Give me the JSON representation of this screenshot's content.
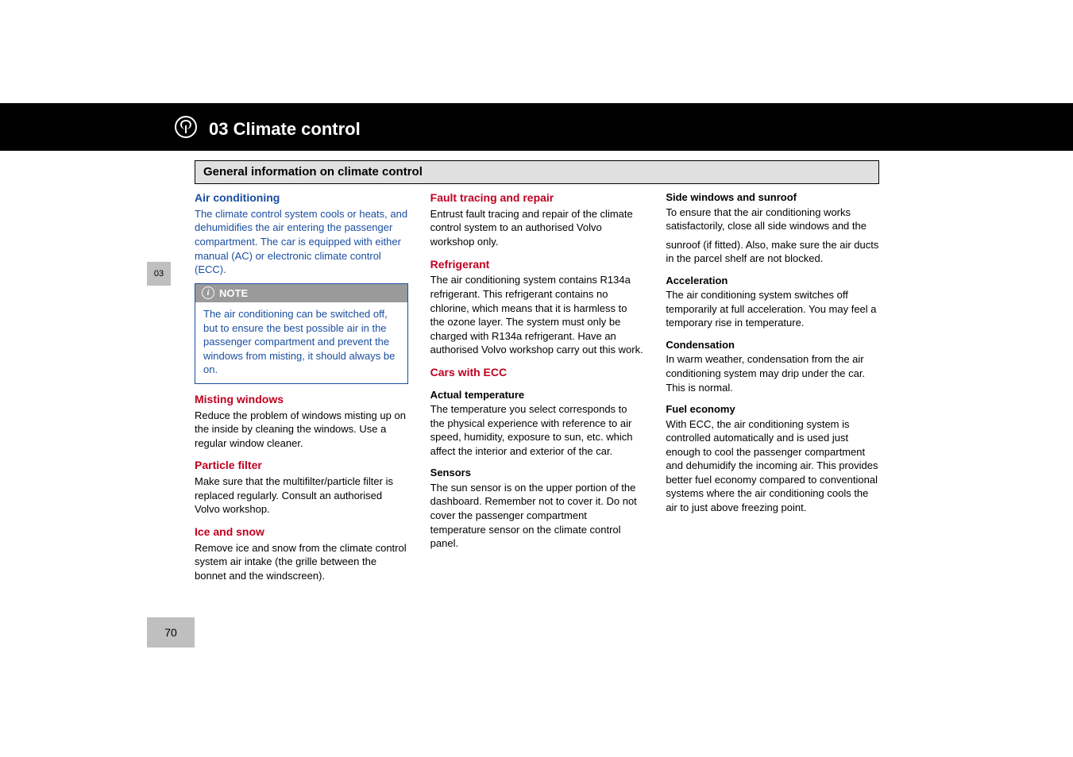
{
  "chapter": {
    "number_label": "03",
    "title": "03 Climate control"
  },
  "section_title": "General information on climate control",
  "page_number": "70",
  "colors": {
    "heading_blue": "#1a4ea0",
    "heading_red": "#c00020",
    "note_bg": "#9a9a9a",
    "side_bg": "#bfbfbf",
    "black": "#000000"
  },
  "col1": {
    "air_cond_h": "Air conditioning",
    "air_cond_p": "The climate control system cools or heats, and dehumidifies the air entering the passenger compartment. The car is equipped with either manual (AC) or electronic climate control (ECC).",
    "note_label": "NOTE",
    "note_body": "The air conditioning can be switched off, but to ensure the best possible air in the passenger compartment and prevent the windows from misting, it should always be on.",
    "misting_h": "Misting windows",
    "misting_p": "Reduce the problem of windows misting up on the inside by cleaning the windows. Use a regular window cleaner.",
    "particle_h": "Particle filter",
    "particle_p": "Make sure that the multifilter/particle filter is replaced regularly. Consult an authorised Volvo workshop.",
    "ice_h": "Ice and snow",
    "ice_p": "Remove ice and snow from the climate control system air intake (the grille between the bonnet and the windscreen)."
  },
  "col2": {
    "fault_h": "Fault tracing and repair",
    "fault_p": "Entrust fault tracing and repair of the climate control system to an authorised Volvo workshop only.",
    "refrig_h": "Refrigerant",
    "refrig_p": "The air conditioning system contains R134a refrigerant. This refrigerant contains no chlorine, which means that it is harmless to the ozone layer. The system must only be charged with R134a refrigerant. Have an authorised Volvo workshop carry out this work.",
    "ecc_h": "Cars with ECC",
    "actual_h": "Actual temperature",
    "actual_p": "The temperature you select corresponds to the physical experience with reference to air speed, humidity, exposure to sun, etc. which affect the interior and exterior of the car.",
    "sensors_h": "Sensors",
    "sensors_p": "The sun sensor is on the upper portion of the dashboard. Remember not to cover it. Do not cover the passenger compartment temperature sensor on the climate control panel.",
    "side_h": "Side windows and sunroof",
    "side_p": "To ensure that the air conditioning works satisfactorily, close all side windows and the"
  },
  "col3": {
    "cont_p": "sunroof (if fitted). Also, make sure the air ducts in the parcel shelf are not blocked.",
    "accel_h": "Acceleration",
    "accel_p": "The air conditioning system switches off temporarily at full acceleration. You may feel a temporary rise in temperature.",
    "cond_h": "Condensation",
    "cond_p": "In warm weather, condensation from the air conditioning system may drip under the car. This is normal.",
    "fuel_h": "Fuel economy",
    "fuel_p": "With ECC, the air conditioning system is controlled automatically and is used just enough to cool the passenger compartment and dehumidify the incoming air. This provides better fuel economy compared to conventional systems where the air conditioning cools the air to just above freezing point."
  }
}
